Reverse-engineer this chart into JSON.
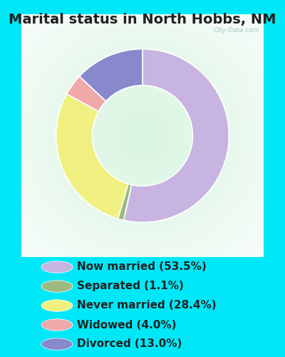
{
  "title": "Marital status in North Hobbs, NM",
  "slices": [
    53.5,
    1.1,
    28.4,
    4.0,
    13.0
  ],
  "labels": [
    "Now married (53.5%)",
    "Separated (1.1%)",
    "Never married (28.4%)",
    "Widowed (4.0%)",
    "Divorced (13.0%)"
  ],
  "colors": [
    "#c8b4e0",
    "#9cba80",
    "#f0f080",
    "#f0a8a8",
    "#8888cc"
  ],
  "fig_bg": "#00e8f8",
  "chart_bg_outer": "#c8e8d8",
  "chart_bg_inner": "#e8f8f0",
  "title_fontsize": 14,
  "donut_width": 0.42,
  "start_angle": 90,
  "legend_fontsize": 11
}
